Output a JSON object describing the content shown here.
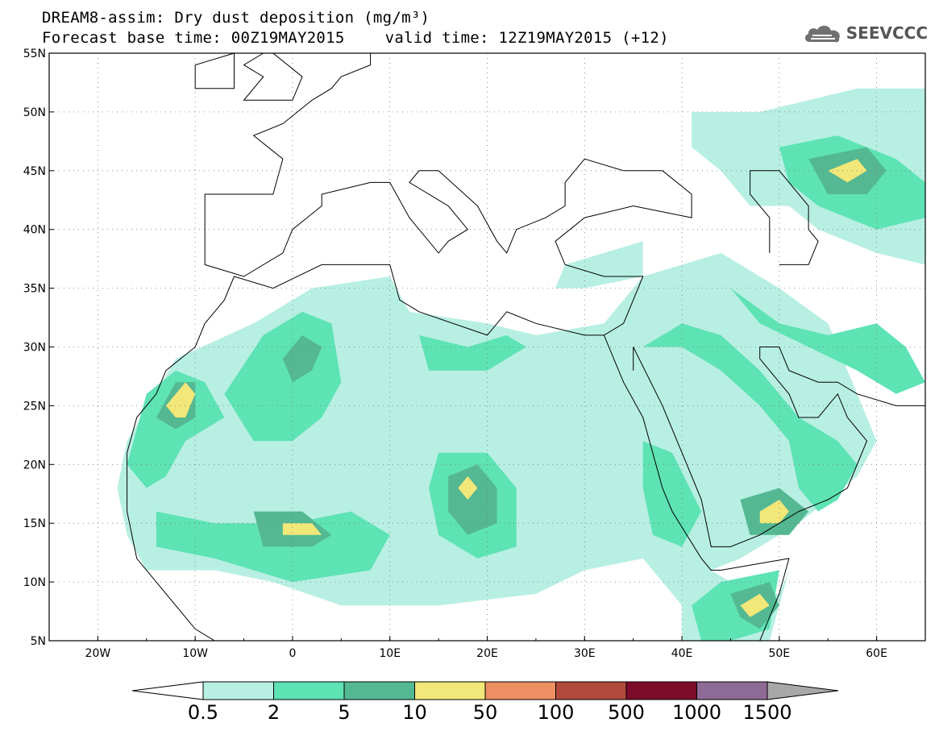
{
  "title": {
    "line1": "DREAM8-assim: Dry dust deposition (mg/m³)",
    "base_time": "Forecast base time: 00Z19MAY2015",
    "valid_time": "valid time: 12Z19MAY2015 (+12)"
  },
  "logo": {
    "text": "SEEVCCC",
    "icon": "cloud-logo-icon"
  },
  "map": {
    "lon_range": [
      -25,
      65
    ],
    "lat_range": [
      5,
      55
    ],
    "x_ticks": [
      {
        "lon": -20,
        "label": "20W"
      },
      {
        "lon": -10,
        "label": "10W"
      },
      {
        "lon": 0,
        "label": "0"
      },
      {
        "lon": 10,
        "label": "10E"
      },
      {
        "lon": 20,
        "label": "20E"
      },
      {
        "lon": 30,
        "label": "30E"
      },
      {
        "lon": 40,
        "label": "40E"
      },
      {
        "lon": 50,
        "label": "50E"
      },
      {
        "lon": 60,
        "label": "60E"
      }
    ],
    "y_ticks": [
      {
        "lat": 55,
        "label": "55N"
      },
      {
        "lat": 50,
        "label": "50N"
      },
      {
        "lat": 45,
        "label": "45N"
      },
      {
        "lat": 40,
        "label": "40N"
      },
      {
        "lat": 35,
        "label": "35N"
      },
      {
        "lat": 30,
        "label": "30N"
      },
      {
        "lat": 25,
        "label": "25N"
      },
      {
        "lat": 20,
        "label": "20N"
      },
      {
        "lat": 15,
        "label": "15N"
      },
      {
        "lat": 10,
        "label": "10N"
      },
      {
        "lat": 5,
        "label": "5N"
      }
    ],
    "grid": "dotted"
  },
  "colorbar": {
    "colors": [
      "#b8efe3",
      "#5ee3b4",
      "#54b893",
      "#f2e779",
      "#ec8f62",
      "#b24a3b",
      "#7d0c2a",
      "#8e6a97"
    ],
    "under_color": "#ffffff",
    "over_color": "#a8a8a8",
    "labels": [
      "0.5",
      "2",
      "5",
      "10",
      "50",
      "100",
      "500",
      "1000",
      "1500"
    ]
  },
  "dust_regions": [
    {
      "level": 0,
      "poly": [
        [
          -17,
          22
        ],
        [
          -12,
          29
        ],
        [
          -4,
          32
        ],
        [
          2,
          35
        ],
        [
          10,
          36
        ],
        [
          12,
          33
        ],
        [
          20,
          32
        ],
        [
          25,
          31
        ],
        [
          32,
          32
        ],
        [
          36,
          36
        ],
        [
          44,
          38
        ],
        [
          50,
          35
        ],
        [
          55,
          32
        ],
        [
          58,
          26
        ],
        [
          60,
          22
        ],
        [
          58,
          19
        ],
        [
          52,
          15
        ],
        [
          46,
          12
        ],
        [
          43,
          11
        ],
        [
          47,
          9
        ],
        [
          50,
          9
        ],
        [
          51,
          11
        ],
        [
          49,
          5
        ],
        [
          40,
          5
        ],
        [
          40,
          8
        ],
        [
          36,
          12
        ],
        [
          30,
          11
        ],
        [
          25,
          9
        ],
        [
          15,
          8
        ],
        [
          5,
          8
        ],
        [
          -2,
          10
        ],
        [
          -8,
          11
        ],
        [
          -15,
          11
        ],
        [
          -17,
          14
        ],
        [
          -18,
          18
        ]
      ]
    },
    {
      "level": 0,
      "poly": [
        [
          41,
          50
        ],
        [
          48,
          50
        ],
        [
          58,
          52
        ],
        [
          65,
          52
        ],
        [
          65,
          37
        ],
        [
          60,
          38
        ],
        [
          54,
          40
        ],
        [
          51,
          42
        ],
        [
          47,
          42
        ],
        [
          44,
          45
        ],
        [
          41,
          47
        ]
      ]
    },
    {
      "level": 0,
      "poly": [
        [
          28,
          37
        ],
        [
          32,
          38
        ],
        [
          36,
          39
        ],
        [
          36,
          36
        ],
        [
          30,
          35
        ],
        [
          27,
          35
        ]
      ]
    },
    {
      "level": 1,
      "poly": [
        [
          -17,
          20
        ],
        [
          -15,
          26
        ],
        [
          -12,
          28
        ],
        [
          -9,
          27
        ],
        [
          -7,
          24
        ],
        [
          -11,
          22
        ],
        [
          -13,
          19
        ],
        [
          -15,
          18
        ]
      ]
    },
    {
      "level": 1,
      "poly": [
        [
          -7,
          26
        ],
        [
          -3,
          31
        ],
        [
          1,
          33
        ],
        [
          4,
          32
        ],
        [
          5,
          27
        ],
        [
          3,
          24
        ],
        [
          0,
          22
        ],
        [
          -4,
          22
        ]
      ]
    },
    {
      "level": 1,
      "poly": [
        [
          13,
          31
        ],
        [
          18,
          30
        ],
        [
          22,
          31
        ],
        [
          24,
          30
        ],
        [
          20,
          28
        ],
        [
          14,
          28
        ]
      ]
    },
    {
      "level": 1,
      "poly": [
        [
          15,
          21
        ],
        [
          20,
          21
        ],
        [
          23,
          18
        ],
        [
          23,
          13
        ],
        [
          19,
          12
        ],
        [
          15,
          14
        ],
        [
          14,
          18
        ]
      ]
    },
    {
      "level": 1,
      "poly": [
        [
          -14,
          16
        ],
        [
          -8,
          15
        ],
        [
          0,
          15
        ],
        [
          6,
          16
        ],
        [
          10,
          14
        ],
        [
          8,
          11
        ],
        [
          0,
          10
        ],
        [
          -8,
          12
        ],
        [
          -14,
          13
        ]
      ]
    },
    {
      "level": 1,
      "poly": [
        [
          36,
          30
        ],
        [
          40,
          30
        ],
        [
          44,
          28
        ],
        [
          48,
          25
        ],
        [
          51,
          22
        ],
        [
          52,
          18
        ],
        [
          54,
          16
        ],
        [
          56,
          17
        ],
        [
          58,
          20
        ],
        [
          56,
          22
        ],
        [
          52,
          24
        ],
        [
          48,
          28
        ],
        [
          44,
          31
        ],
        [
          40,
          32
        ]
      ]
    },
    {
      "level": 1,
      "poly": [
        [
          36,
          22
        ],
        [
          39,
          21
        ],
        [
          42,
          16
        ],
        [
          40,
          13
        ],
        [
          37,
          14
        ],
        [
          36,
          18
        ]
      ]
    },
    {
      "level": 1,
      "poly": [
        [
          50,
          47
        ],
        [
          56,
          48
        ],
        [
          62,
          46
        ],
        [
          65,
          44
        ],
        [
          65,
          41
        ],
        [
          60,
          40
        ],
        [
          54,
          42
        ],
        [
          51,
          44
        ]
      ]
    },
    {
      "level": 1,
      "poly": [
        [
          45,
          35
        ],
        [
          50,
          32
        ],
        [
          55,
          31
        ],
        [
          60,
          32
        ],
        [
          63,
          30
        ],
        [
          65,
          27
        ],
        [
          62,
          26
        ],
        [
          58,
          28
        ],
        [
          53,
          30
        ],
        [
          48,
          32
        ]
      ]
    },
    {
      "level": 1,
      "poly": [
        [
          41,
          8
        ],
        [
          44,
          10
        ],
        [
          50,
          11
        ],
        [
          49,
          6
        ],
        [
          45,
          5
        ],
        [
          42,
          5
        ]
      ]
    },
    {
      "level": 2,
      "poly": [
        [
          -14,
          24
        ],
        [
          -12,
          27
        ],
        [
          -10,
          27
        ],
        [
          -10,
          24
        ],
        [
          -12,
          23
        ]
      ]
    },
    {
      "level": 2,
      "poly": [
        [
          -1,
          29
        ],
        [
          1,
          31
        ],
        [
          3,
          30
        ],
        [
          2,
          28
        ],
        [
          0,
          27
        ]
      ]
    },
    {
      "level": 2,
      "poly": [
        [
          16,
          19
        ],
        [
          19,
          20
        ],
        [
          21,
          18
        ],
        [
          21,
          15
        ],
        [
          18,
          14
        ],
        [
          16,
          16
        ]
      ]
    },
    {
      "level": 2,
      "poly": [
        [
          -4,
          16
        ],
        [
          1,
          16
        ],
        [
          4,
          14
        ],
        [
          2,
          13
        ],
        [
          -3,
          13
        ]
      ]
    },
    {
      "level": 2,
      "poly": [
        [
          46,
          17
        ],
        [
          50,
          18
        ],
        [
          53,
          16
        ],
        [
          51,
          14
        ],
        [
          47,
          14
        ]
      ]
    },
    {
      "level": 2,
      "poly": [
        [
          53,
          46
        ],
        [
          59,
          47
        ],
        [
          61,
          45
        ],
        [
          59,
          43
        ],
        [
          55,
          43
        ]
      ]
    },
    {
      "level": 2,
      "poly": [
        [
          45,
          9
        ],
        [
          49,
          10
        ],
        [
          50,
          8
        ],
        [
          48,
          6
        ],
        [
          46,
          7
        ]
      ]
    },
    {
      "level": 3,
      "poly": [
        [
          -13,
          25
        ],
        [
          -11,
          27
        ],
        [
          -10,
          26
        ],
        [
          -11,
          24
        ],
        [
          -12,
          24
        ]
      ]
    },
    {
      "level": 3,
      "poly": [
        [
          -1,
          15
        ],
        [
          2,
          15
        ],
        [
          3,
          14
        ],
        [
          1,
          14
        ],
        [
          -1,
          14
        ]
      ]
    },
    {
      "level": 3,
      "poly": [
        [
          17,
          18
        ],
        [
          18,
          19
        ],
        [
          19,
          18
        ],
        [
          18,
          17
        ]
      ]
    },
    {
      "level": 3,
      "poly": [
        [
          48,
          16
        ],
        [
          50,
          17
        ],
        [
          51,
          16
        ],
        [
          50,
          15
        ],
        [
          48,
          15
        ]
      ]
    },
    {
      "level": 3,
      "poly": [
        [
          55,
          45
        ],
        [
          58,
          46
        ],
        [
          59,
          45
        ],
        [
          57,
          44
        ]
      ]
    },
    {
      "level": 3,
      "poly": [
        [
          46,
          8
        ],
        [
          48,
          9
        ],
        [
          49,
          8
        ],
        [
          47,
          7
        ]
      ]
    }
  ],
  "coastlines": [
    [
      [
        -17,
        21
      ],
      [
        -16,
        24
      ],
      [
        -14,
        26
      ],
      [
        -13,
        28
      ],
      [
        -10,
        30
      ],
      [
        -9,
        32
      ],
      [
        -7,
        34
      ],
      [
        -6,
        36
      ],
      [
        -2,
        35
      ],
      [
        3,
        37
      ],
      [
        10,
        37
      ],
      [
        11,
        34
      ],
      [
        13,
        33
      ],
      [
        20,
        31
      ],
      [
        22,
        33
      ],
      [
        25,
        32
      ],
      [
        30,
        31
      ],
      [
        32,
        31
      ],
      [
        34,
        32
      ],
      [
        35,
        34
      ],
      [
        36,
        36
      ],
      [
        32,
        36
      ],
      [
        28,
        37
      ],
      [
        27,
        39
      ],
      [
        30,
        41
      ],
      [
        35,
        42
      ],
      [
        41,
        41
      ],
      [
        41,
        43
      ],
      [
        38,
        45
      ],
      [
        34,
        45
      ],
      [
        30,
        46
      ],
      [
        28,
        44
      ],
      [
        28,
        42
      ],
      [
        26,
        41
      ],
      [
        23,
        40
      ],
      [
        22,
        38
      ],
      [
        21,
        39
      ],
      [
        19,
        42
      ],
      [
        15,
        45
      ],
      [
        13,
        45
      ],
      [
        12,
        44
      ],
      [
        16,
        42
      ],
      [
        18,
        40
      ],
      [
        16,
        39
      ],
      [
        15,
        38
      ],
      [
        12,
        41
      ],
      [
        10,
        44
      ],
      [
        8,
        44
      ],
      [
        3,
        43
      ],
      [
        3,
        42
      ],
      [
        0,
        40
      ],
      [
        -1,
        38
      ],
      [
        -5,
        36
      ],
      [
        -9,
        37
      ],
      [
        -9,
        43
      ],
      [
        -2,
        43
      ],
      [
        -1,
        46
      ],
      [
        -4,
        48
      ],
      [
        -1,
        49
      ],
      [
        2,
        51
      ],
      [
        4,
        52
      ],
      [
        5,
        53
      ],
      [
        8,
        54
      ],
      [
        8,
        55
      ]
    ],
    [
      [
        -17,
        21
      ],
      [
        -17,
        16
      ],
      [
        -16,
        12
      ],
      [
        -13,
        9
      ],
      [
        -10,
        6
      ],
      [
        -8,
        5
      ]
    ],
    [
      [
        5,
        5
      ],
      [
        8,
        5
      ],
      [
        9,
        4
      ]
    ],
    [
      [
        32,
        31
      ],
      [
        33,
        29
      ],
      [
        34,
        27
      ],
      [
        36,
        24
      ],
      [
        37,
        21
      ],
      [
        38,
        18
      ],
      [
        39,
        16
      ],
      [
        42,
        12
      ],
      [
        43,
        11
      ],
      [
        44,
        11
      ],
      [
        51,
        12
      ],
      [
        50,
        9
      ],
      [
        48,
        5
      ]
    ],
    [
      [
        35,
        28
      ],
      [
        35,
        30
      ],
      [
        38,
        25
      ],
      [
        40,
        21
      ],
      [
        42,
        17
      ],
      [
        43,
        13
      ],
      [
        45,
        13
      ],
      [
        48,
        14
      ],
      [
        52,
        16
      ],
      [
        55,
        17
      ],
      [
        57,
        18
      ],
      [
        59,
        22
      ],
      [
        57,
        24
      ],
      [
        56,
        26
      ],
      [
        54,
        24
      ],
      [
        52,
        24
      ],
      [
        51,
        26
      ],
      [
        50,
        27
      ],
      [
        48,
        29
      ],
      [
        48,
        30
      ],
      [
        50,
        30
      ],
      [
        51,
        28
      ],
      [
        54,
        27
      ],
      [
        56,
        27
      ],
      [
        58,
        26
      ],
      [
        62,
        25
      ],
      [
        65,
        25
      ]
    ],
    [
      [
        -3,
        55
      ],
      [
        -5,
        54
      ],
      [
        -3,
        53
      ],
      [
        -5,
        51
      ],
      [
        0,
        51
      ],
      [
        1,
        53
      ],
      [
        -2,
        55
      ]
    ],
    [
      [
        -6,
        55
      ],
      [
        -10,
        54
      ],
      [
        -10,
        52
      ],
      [
        -6,
        52
      ],
      [
        -6,
        55
      ]
    ],
    [
      [
        50,
        37
      ],
      [
        53,
        37
      ],
      [
        54,
        39
      ],
      [
        53,
        40
      ],
      [
        53,
        42
      ],
      [
        50,
        45
      ],
      [
        47,
        45
      ],
      [
        47,
        43
      ],
      [
        49,
        41
      ],
      [
        49,
        38
      ]
    ]
  ]
}
